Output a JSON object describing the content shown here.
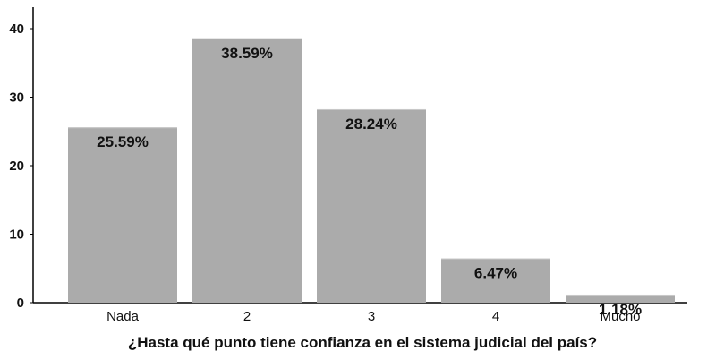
{
  "chart_data": {
    "type": "bar",
    "title": "",
    "xlabel": "¿Hasta qué punto tiene confianza en el sistema judicial del país?",
    "ylabel": "",
    "categories": [
      "Nada",
      "2",
      "3",
      "4",
      "Mucho"
    ],
    "values": [
      25.59,
      38.59,
      28.24,
      6.47,
      1.18
    ],
    "value_labels": [
      "25.59%",
      "38.59%",
      "28.24%",
      "6.47%",
      "1.18%"
    ],
    "ylim": [
      0,
      40
    ],
    "yticks": [
      0,
      10,
      20,
      30,
      40
    ],
    "grid": false,
    "bar_color": "#ababab",
    "axis_color": "#000000"
  }
}
